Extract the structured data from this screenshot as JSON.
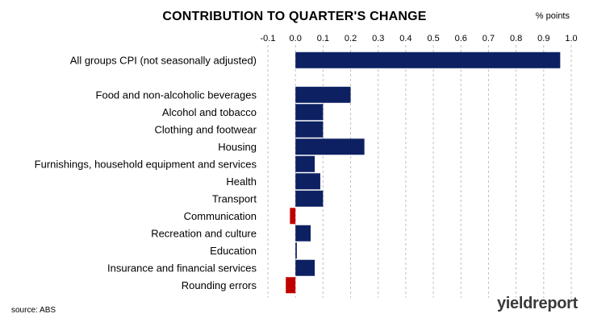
{
  "chart_data": {
    "type": "bar",
    "orientation": "horizontal",
    "title": "CONTRIBUTION TO QUARTER'S CHANGE",
    "unit_label": "% points",
    "categories": [
      "All groups CPI (not seasonally adjusted)",
      "",
      "Food and non-alcoholic beverages",
      "Alcohol and tobacco",
      "Clothing and footwear",
      "Housing",
      "Furnishings, household equipment and services",
      "Health",
      "Transport",
      "Communication",
      "Recreation and culture",
      "Education",
      "Insurance and financial services",
      "Rounding errors"
    ],
    "values": [
      0.96,
      null,
      0.2,
      0.1,
      0.1,
      0.25,
      0.07,
      0.09,
      0.1,
      -0.02,
      0.055,
      0.005,
      0.07,
      -0.035
    ],
    "xlim": [
      -0.1,
      1.0
    ],
    "x_ticks": [
      "-0.1",
      "0.0",
      "0.1",
      "0.2",
      "0.3",
      "0.4",
      "0.5",
      "0.6",
      "0.7",
      "0.8",
      "0.9",
      "1.0"
    ],
    "x_tick_values": [
      -0.1,
      0.0,
      0.1,
      0.2,
      0.3,
      0.4,
      0.5,
      0.6,
      0.7,
      0.8,
      0.9,
      1.0
    ],
    "x_axis_position": "top",
    "grid": "vertical dashed",
    "colors": {
      "positive": "#0d2162",
      "negative": "#c00000",
      "grid": "#bfbfbf"
    }
  },
  "source": "source: ABS",
  "logo": {
    "main": "yieldreport"
  }
}
